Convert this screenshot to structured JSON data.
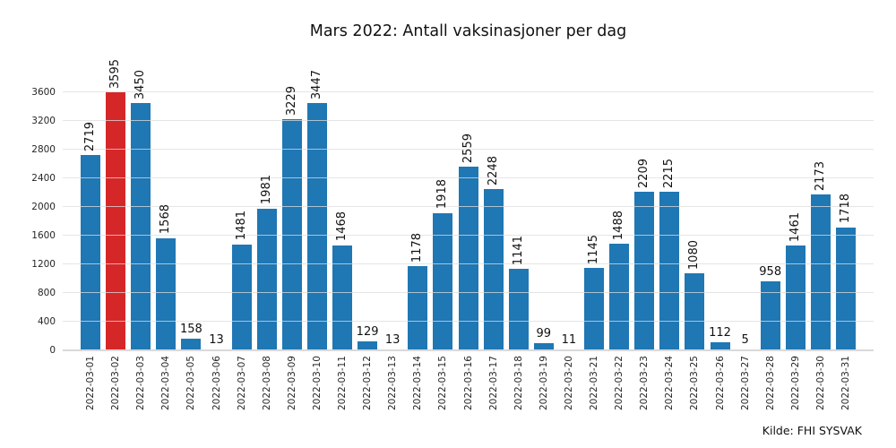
{
  "chart_data": {
    "type": "bar",
    "title": "Mars 2022: Antall vaksinasjoner per dag",
    "annotation": "Kilde: FHI SYSVAK",
    "xlabel": "",
    "ylabel": "",
    "categories": [
      "2022-03-01",
      "2022-03-02",
      "2022-03-03",
      "2022-03-04",
      "2022-03-05",
      "2022-03-06",
      "2022-03-07",
      "2022-03-08",
      "2022-03-09",
      "2022-03-10",
      "2022-03-11",
      "2022-03-12",
      "2022-03-13",
      "2022-03-14",
      "2022-03-15",
      "2022-03-16",
      "2022-03-17",
      "2022-03-18",
      "2022-03-19",
      "2022-03-20",
      "2022-03-21",
      "2022-03-22",
      "2022-03-23",
      "2022-03-24",
      "2022-03-25",
      "2022-03-26",
      "2022-03-27",
      "2022-03-28",
      "2022-03-29",
      "2022-03-30",
      "2022-03-31"
    ],
    "values": [
      2719,
      3595,
      3450,
      1568,
      158,
      13,
      1481,
      1981,
      3229,
      3447,
      1468,
      129,
      13,
      1178,
      1918,
      2559,
      2248,
      1141,
      99,
      11,
      1145,
      1488,
      2209,
      2215,
      1080,
      112,
      5,
      958,
      1461,
      2173,
      1718
    ],
    "highlight_index": 1,
    "bar_color": "#1f77b4",
    "highlight_color": "#d62728",
    "ylim": [
      0,
      3600
    ],
    "yticks": [
      0,
      400,
      800,
      1200,
      1600,
      2000,
      2400,
      2800,
      3200,
      3600
    ],
    "grid": true,
    "bar_labels": true,
    "bar_label_rotation_min_value": 1000,
    "legend_position": "none"
  }
}
